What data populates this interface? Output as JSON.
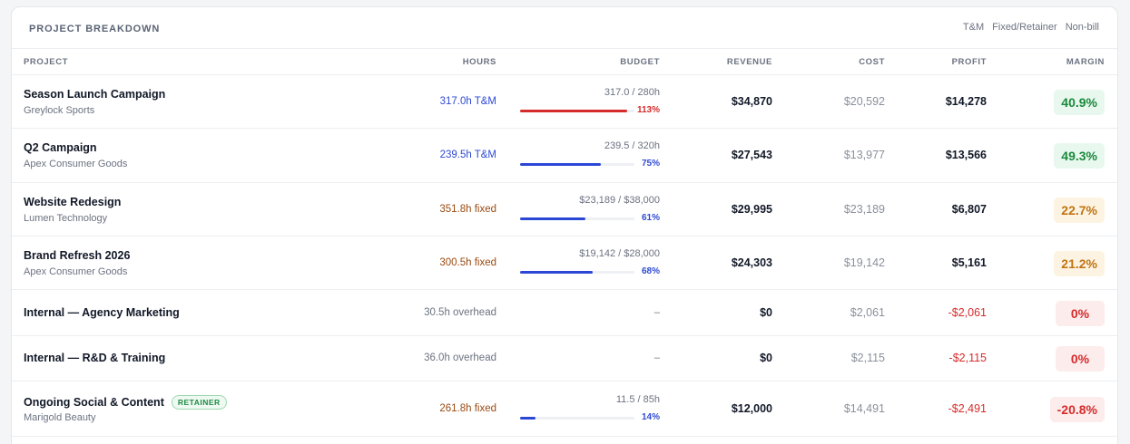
{
  "panel": {
    "title": "PROJECT BREAKDOWN",
    "legend": [
      "T&M",
      "Fixed/Retainer",
      "Non-bill"
    ]
  },
  "columns": {
    "project": "PROJECT",
    "hours": "HOURS",
    "budget": "BUDGET",
    "revenue": "REVENUE",
    "cost": "COST",
    "profit": "PROFIT",
    "margin": "MARGIN"
  },
  "rows": [
    {
      "name": "Season Launch Campaign",
      "client": "Greylock Sports",
      "badge": "",
      "hours": "317.0h T&M",
      "hours_type": "tm",
      "budget_text": "317.0 / 280h",
      "budget_pct_label": "113%",
      "budget_fraction": 1.13,
      "revenue": "$34,870",
      "cost": "$20,592",
      "profit": "$14,278",
      "profit_negative": false,
      "margin": "40.9%",
      "margin_status": "green"
    },
    {
      "name": "Q2 Campaign",
      "client": "Apex Consumer Goods",
      "badge": "",
      "hours": "239.5h T&M",
      "hours_type": "tm",
      "budget_text": "239.5 / 320h",
      "budget_pct_label": "75%",
      "budget_fraction": 0.75,
      "revenue": "$27,543",
      "cost": "$13,977",
      "profit": "$13,566",
      "profit_negative": false,
      "margin": "49.3%",
      "margin_status": "green"
    },
    {
      "name": "Website Redesign",
      "client": "Lumen Technology",
      "badge": "",
      "hours": "351.8h fixed",
      "hours_type": "fixed",
      "budget_text": "$23,189 / $38,000",
      "budget_pct_label": "61%",
      "budget_fraction": 0.61,
      "revenue": "$29,995",
      "cost": "$23,189",
      "profit": "$6,807",
      "profit_negative": false,
      "margin": "22.7%",
      "margin_status": "amber"
    },
    {
      "name": "Brand Refresh 2026",
      "client": "Apex Consumer Goods",
      "badge": "",
      "hours": "300.5h fixed",
      "hours_type": "fixed",
      "budget_text": "$19,142 / $28,000",
      "budget_pct_label": "68%",
      "budget_fraction": 0.68,
      "revenue": "$24,303",
      "cost": "$19,142",
      "profit": "$5,161",
      "profit_negative": false,
      "margin": "21.2%",
      "margin_status": "amber"
    },
    {
      "name": "Internal — Agency Marketing",
      "client": "",
      "badge": "",
      "hours": "30.5h overhead",
      "hours_type": "overhead",
      "budget_text": "–",
      "budget_pct_label": "",
      "budget_fraction": null,
      "revenue": "$0",
      "cost": "$2,061",
      "profit": "-$2,061",
      "profit_negative": true,
      "margin": "0%",
      "margin_status": "red"
    },
    {
      "name": "Internal — R&D & Training",
      "client": "",
      "badge": "",
      "hours": "36.0h overhead",
      "hours_type": "overhead",
      "budget_text": "–",
      "budget_pct_label": "",
      "budget_fraction": null,
      "revenue": "$0",
      "cost": "$2,115",
      "profit": "-$2,115",
      "profit_negative": true,
      "margin": "0%",
      "margin_status": "red"
    },
    {
      "name": "Ongoing Social & Content",
      "client": "Marigold Beauty",
      "badge": "RETAINER",
      "hours": "261.8h fixed",
      "hours_type": "fixed",
      "budget_text": "11.5 / 85h",
      "budget_pct_label": "14%",
      "budget_fraction": 0.14,
      "revenue": "$12,000",
      "cost": "$14,491",
      "profit": "-$2,491",
      "profit_negative": true,
      "margin": "-20.8%",
      "margin_status": "red"
    }
  ]
}
